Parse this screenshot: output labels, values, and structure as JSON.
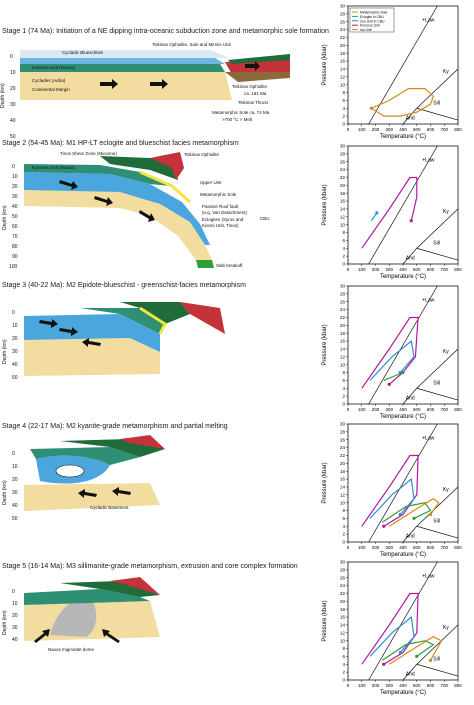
{
  "stages": [
    {
      "title": "Stage 1 (74 Ma): Initiation of a NE dipping intra-oceanic subduction zone and metamorphic sole formation",
      "labels": {
        "l1": "Cycladic Blueschists",
        "l2": "Tsiknias Ophiolite, Sole and Mirsini Unit",
        "l3": "Koronos Unit (Naxos)",
        "l4": "Cyclades (Adria)",
        "l5": "Continental Margin",
        "l6": "Tsiknias Ophiolite",
        "l7": "ca. 161 Ma",
        "l8": "Tsiknias Thrust",
        "l9": "Metamorphic Sole ca. 74 Ma",
        "l10": ">700 °C > Melt"
      },
      "depth_label": "Depth (km)",
      "depth_ticks": [
        "0",
        "10",
        "20",
        "30",
        "40",
        "50"
      ],
      "legend": [
        "Metamorphic Sole",
        "Eclogite in CBU",
        "Zoo Unit in CBU",
        "Koronos Unit",
        "Ios Unit"
      ]
    },
    {
      "title": "Stage 2 (54-45 Ma): M1 HP-LT eclogite and blueschist facies metamorphism",
      "labels": {
        "l1": "Tinos Shear Zone (Miocene)",
        "l2": "Tsiknias Ophiolite",
        "l3": "Koronos Unit (Naxos)",
        "l4": "Upper Unit",
        "l5": "Metamorphic Sole",
        "l6": "Passive Roof fault",
        "l7": "(e.g. Vari Detachment)",
        "l8": "Eclogites (Syros and",
        "l9": "Kionni Unit, Tinos)",
        "l10": "CBU",
        "l11": "Slab breakoff"
      },
      "depth_label": "Depth (km)",
      "depth_ticks": [
        "0",
        "10",
        "20",
        "30",
        "40",
        "50",
        "60",
        "70",
        "80",
        "90",
        "100"
      ]
    },
    {
      "title": "Stage 3 (40-22 Ma): M2 Epidote-blueschist - greenschist-facies metamorphism",
      "depth_label": "Depth (km)",
      "depth_ticks": [
        "0",
        "10",
        "20",
        "30",
        "40",
        "50"
      ]
    },
    {
      "title": "Stage 4 (22-17 Ma): M2 kyanite-grade metamorphism and partial melting",
      "labels": {
        "l1": "Cycladic Basement"
      },
      "depth_label": "Depth (km)",
      "depth_ticks": [
        "0",
        "10",
        "20",
        "30",
        "40",
        "50"
      ]
    },
    {
      "title": "Stage 5 (16-14 Ma): M3 sillimanite-grade metamorphism, extrusion and core complex formation",
      "labels": {
        "l1": "Naxos migmatite dome"
      },
      "depth_label": "Depth (km)",
      "depth_ticks": [
        "0",
        "10",
        "20",
        "30",
        "40"
      ]
    }
  ],
  "pt_charts": {
    "xlabel": "Temperature (°C)",
    "ylabel": "Pressure (kbar)",
    "xticks": [
      "0",
      "100",
      "200",
      "300",
      "400",
      "500",
      "600",
      "700",
      "800"
    ],
    "yticks": [
      "0",
      "2",
      "4",
      "6",
      "8",
      "10",
      "12",
      "14",
      "16",
      "18",
      "20",
      "22",
      "24",
      "26",
      "28",
      "30"
    ],
    "phase_labels": {
      "claw": "+Law",
      "ky": "Ky",
      "sill": "Sill",
      "and": "And"
    }
  },
  "chart_data": [
    {
      "type": "line",
      "panel": 1,
      "xlabel": "Temperature (°C)",
      "ylabel": "Pressure (kbar)",
      "xlim": [
        0,
        800
      ],
      "ylim": [
        0,
        30
      ],
      "series": [
        {
          "color": "#d18b1a",
          "points": [
            [
              170,
              4
            ],
            [
              300,
              6
            ],
            [
              440,
              9
            ],
            [
              560,
              9
            ],
            [
              620,
              7
            ],
            [
              600,
              5
            ],
            [
              500,
              3
            ],
            [
              380,
              2
            ],
            [
              260,
              2
            ],
            [
              170,
              4
            ]
          ]
        }
      ]
    },
    {
      "type": "line",
      "panel": 2,
      "xlabel": "Temperature (°C)",
      "ylabel": "Pressure (kbar)",
      "xlim": [
        0,
        800
      ],
      "ylim": [
        0,
        30
      ],
      "series": [
        {
          "color": "#b3179e",
          "points": [
            [
              100,
              4
            ],
            [
              300,
              14
            ],
            [
              450,
              22
            ],
            [
              500,
              22
            ],
            [
              500,
              17
            ],
            [
              460,
              11
            ]
          ]
        },
        {
          "color": "#2a8fd6",
          "points": [
            [
              170,
              11
            ],
            [
              210,
              13
            ]
          ]
        }
      ]
    },
    {
      "type": "line",
      "panel": 3,
      "xlabel": "Temperature (°C)",
      "ylabel": "Pressure (kbar)",
      "xlim": [
        0,
        800
      ],
      "ylim": [
        0,
        30
      ],
      "series": [
        {
          "color": "#b3179e",
          "points": [
            [
              100,
              4
            ],
            [
              300,
              14
            ],
            [
              450,
              22
            ],
            [
              510,
              22
            ],
            [
              490,
              12
            ],
            [
              400,
              8
            ],
            [
              300,
              5
            ]
          ]
        },
        {
          "color": "#2a8fd6",
          "points": [
            [
              160,
              6
            ],
            [
              320,
              12
            ],
            [
              460,
              16
            ],
            [
              480,
              12
            ],
            [
              380,
              8
            ]
          ]
        },
        {
          "color": "#2e9e3a",
          "points": [
            [
              260,
              6
            ],
            [
              400,
              8
            ]
          ]
        }
      ]
    },
    {
      "type": "line",
      "panel": 4,
      "xlabel": "Temperature (°C)",
      "ylabel": "Pressure (kbar)",
      "xlim": [
        0,
        800
      ],
      "ylim": [
        0,
        30
      ],
      "series": [
        {
          "color": "#b3179e",
          "points": [
            [
              100,
              4
            ],
            [
              300,
              14
            ],
            [
              450,
              22
            ],
            [
              510,
              22
            ],
            [
              500,
              12
            ],
            [
              400,
              7
            ],
            [
              260,
              4
            ]
          ]
        },
        {
          "color": "#2a8fd6",
          "points": [
            [
              160,
              6
            ],
            [
              320,
              12
            ],
            [
              460,
              16
            ],
            [
              480,
              11
            ],
            [
              380,
              7
            ]
          ]
        },
        {
          "color": "#2e9e3a",
          "points": [
            [
              250,
              5
            ],
            [
              420,
              9
            ],
            [
              560,
              10
            ],
            [
              600,
              8
            ],
            [
              480,
              6
            ]
          ]
        },
        {
          "color": "#d18b1a",
          "points": [
            [
              300,
              4
            ],
            [
              480,
              8
            ],
            [
              620,
              11
            ],
            [
              660,
              10
            ],
            [
              600,
              7
            ]
          ]
        }
      ]
    },
    {
      "type": "line",
      "panel": 5,
      "xlabel": "Temperature (°C)",
      "ylabel": "Pressure (kbar)",
      "xlim": [
        0,
        800
      ],
      "ylim": [
        0,
        30
      ],
      "series": [
        {
          "color": "#b3179e",
          "points": [
            [
              100,
              4
            ],
            [
              300,
              14
            ],
            [
              450,
              22
            ],
            [
              510,
              22
            ],
            [
              500,
              12
            ],
            [
              400,
              7
            ],
            [
              260,
              4
            ]
          ]
        },
        {
          "color": "#2a8fd6",
          "points": [
            [
              160,
              6
            ],
            [
              320,
              12
            ],
            [
              460,
              16
            ],
            [
              480,
              11
            ],
            [
              380,
              7
            ]
          ]
        },
        {
          "color": "#2e9e3a",
          "points": [
            [
              250,
              5
            ],
            [
              420,
              9
            ],
            [
              560,
              10
            ],
            [
              620,
              9
            ],
            [
              500,
              6
            ]
          ]
        },
        {
          "color": "#d18b1a",
          "points": [
            [
              300,
              4
            ],
            [
              480,
              8
            ],
            [
              620,
              11
            ],
            [
              680,
              10
            ],
            [
              600,
              5
            ]
          ]
        }
      ]
    }
  ],
  "colors": {
    "sand": "#f2dca0",
    "sand_dark": "#e6c67a",
    "blue": "#4aa6dc",
    "teal": "#2f8f74",
    "green_dark": "#1f6b3a",
    "red": "#c5323a",
    "yellow": "#f4e63a",
    "grey": "#b7b7b7",
    "brown": "#8a6a3b"
  }
}
